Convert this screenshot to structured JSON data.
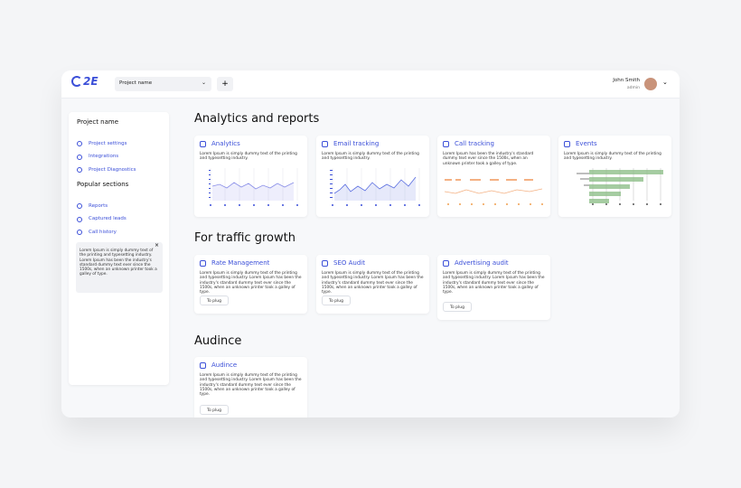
{
  "header": {
    "logo": "2E",
    "project_select": "Project name",
    "add_button": "+",
    "user": {
      "name": "John Smith",
      "role": "admin"
    }
  },
  "sidebar": {
    "title": "Project name",
    "items": [
      "Project settings",
      "Integrations",
      "Project Diagnostics"
    ],
    "popular_title": "Popular sections",
    "popular_items": [
      "Reports",
      "Captured leads",
      "Call history"
    ],
    "note": {
      "text": "Lorem Ipsum is simply dummy text of the printing and typesetting industry. Lorem Ipsum has been the industry's standard dummy text ever since the 1500s, when an unknown printer took a galley of type.",
      "close": "×"
    }
  },
  "sections": [
    {
      "title": "Analytics and reports",
      "cards": [
        {
          "title": "Analytics",
          "description": "Lorem Ipsum is simply dummy text of the printing and typesetting industry."
        },
        {
          "title": "Email tracking",
          "description": "Lorem Ipsum is simply dummy text of the printing and typesetting industry."
        },
        {
          "title": "Call tracking",
          "description": "Lorem Ipsum has been the industry's standard dummy text ever since the 1500s, when an unknown printer took a galley of type."
        },
        {
          "title": "Events",
          "description": "Lorem Ipsum is simply dummy text of the printing and typesetting industry."
        }
      ]
    },
    {
      "title": "For traffic growth",
      "cards": [
        {
          "title": "Rate Management",
          "description": "Lorem Ipsum is simply dummy text of the printing and typesetting industry. Lorem Ipsum has been the industry's standard dummy text ever since the 1500s, when an unknown printer took a galley of type.",
          "button": "To plug"
        },
        {
          "title": "SEO Audit",
          "description": "Lorem Ipsum is simply dummy text of the printing and typesetting industry. Lorem Ipsum has been the industry's standard dummy text ever since the 1500s, when an unknown printer took a galley of type.",
          "button": "To plug"
        },
        {
          "title": "Advertising audit",
          "description": "Lorem Ipsum is simply dummy text of the printing and typesetting industry. Lorem Ipsum has been the industry's standard dummy text ever since the 1500s, when an unknown printer took a galley of type.",
          "button": "To plug"
        }
      ]
    },
    {
      "title": "Audince",
      "cards": [
        {
          "title": "Audince",
          "description": "Lorem Ipsum is simply dummy text of the printing and typesetting industry. Lorem Ipsum has been the industry's standard dummy text ever since the 1500s, when an unknown printer took a galley of type.",
          "button": "To plug"
        }
      ]
    }
  ]
}
